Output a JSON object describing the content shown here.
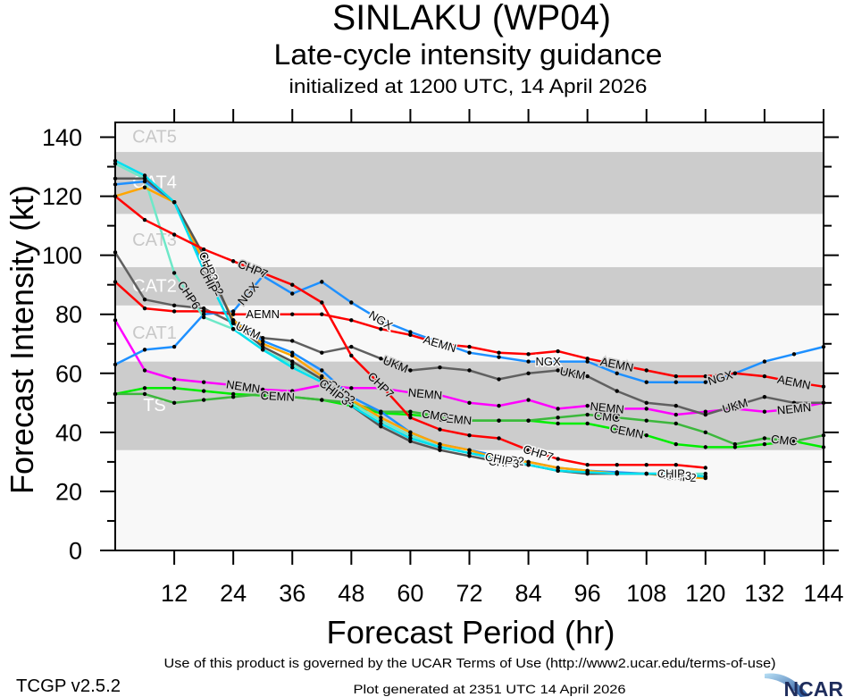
{
  "footer": {
    "terms": "Use of this product is governed by the UCAR Terms of Use (http://www2.ucar.edu/terms-of-use)",
    "version": "TCGP v2.5.2",
    "generated": "Plot generated at 2351 UTC   14 April 2026",
    "logo_text": "NCAR",
    "logo_colors": {
      "swoosh_light": "#b8e0f5",
      "swoosh_dark": "#1f4f9a",
      "text": "#1f2d5c"
    }
  },
  "chart_data": {
    "type": "line",
    "title": "SINLAKU (WP04)",
    "subtitle": "Late-cycle intensity guidance",
    "init_line": "initialized at 1200 UTC, 14 April 2026",
    "xlabel": "Forecast Period (hr)",
    "ylabel": "Forecast Intensity (kt)",
    "xlim": [
      0,
      144
    ],
    "ylim": [
      0,
      145
    ],
    "grid": false,
    "legend": "none (inline series labels)",
    "xticks": [
      12,
      24,
      36,
      48,
      60,
      72,
      84,
      96,
      108,
      120,
      132,
      144
    ],
    "yticks": [
      0,
      20,
      40,
      60,
      80,
      100,
      120,
      140
    ],
    "plot_background": "#f8f8f8",
    "bands": [
      {
        "label": "TS",
        "range": [
          34,
          64
        ],
        "fill": "#cccccc",
        "label_color": "#ffffff"
      },
      {
        "label": "CAT1",
        "range": [
          64,
          83
        ],
        "fill": "#f8f8f8",
        "label_color": "#c8c8c8"
      },
      {
        "label": "CAT2",
        "range": [
          83,
          96
        ],
        "fill": "#cccccc",
        "label_color": "#ffffff"
      },
      {
        "label": "CAT3",
        "range": [
          96,
          114
        ],
        "fill": "#f8f8f8",
        "label_color": "#c8c8c8"
      },
      {
        "label": "CAT4",
        "range": [
          114,
          135
        ],
        "fill": "#cccccc",
        "label_color": "#ffffff"
      },
      {
        "label": "CAT5",
        "range": [
          135,
          145
        ],
        "fill": "#f8f8f8",
        "label_color": "#c8c8c8"
      }
    ],
    "x": [
      0,
      6,
      12,
      18,
      24,
      30,
      36,
      42,
      48,
      54,
      60,
      66,
      72,
      78,
      84,
      90,
      96,
      102,
      108,
      114,
      120,
      126,
      132,
      138,
      144
    ],
    "series": [
      {
        "name": "CEMN",
        "color": "#00ee00",
        "label_hours": [
          33,
          69,
          104
        ],
        "values": [
          53,
          55,
          55,
          54,
          53,
          52.5,
          52,
          51,
          49,
          46.5,
          46,
          45,
          44,
          44,
          44,
          43,
          43,
          41,
          39,
          36,
          35,
          35,
          36,
          37,
          35
        ]
      },
      {
        "name": "CMC",
        "color": "#3cb83c",
        "label_hours": [
          65,
          100,
          136
        ],
        "values": [
          53,
          53,
          50,
          51,
          52,
          53,
          52,
          51,
          50,
          47,
          47,
          45.5,
          44,
          44,
          44,
          45,
          46,
          45,
          44,
          43,
          40,
          36,
          38,
          37,
          39
        ]
      },
      {
        "name": "NEMN",
        "color": "#ff00ff",
        "label_hours": [
          26,
          63,
          100,
          138
        ],
        "values": [
          78,
          61,
          58,
          57,
          56,
          54.5,
          54,
          56,
          55,
          55,
          53.5,
          52.6,
          50,
          49,
          51,
          48,
          49,
          48,
          48,
          46,
          47,
          48,
          47,
          48,
          50
        ]
      },
      {
        "name": "UKM",
        "color": "#606060",
        "label_hours": [
          27,
          57,
          93,
          126
        ],
        "values": [
          101,
          85,
          83,
          82,
          77,
          72,
          71,
          67,
          69,
          65,
          61,
          62,
          61,
          58,
          60,
          61,
          59,
          54,
          50,
          49,
          46,
          49,
          52,
          50,
          50
        ]
      },
      {
        "name": "NGX",
        "color": "#1e90ff",
        "label_hours": [
          27,
          54,
          88,
          123
        ],
        "values": [
          63,
          68,
          69,
          80,
          81,
          93,
          87,
          91,
          84,
          78,
          74,
          70.5,
          67,
          65.5,
          64,
          64,
          64,
          60,
          57,
          57,
          57,
          60,
          64,
          66.5,
          69
        ]
      },
      {
        "name": "AEMN",
        "color": "#ff0000",
        "label_hours": [
          30,
          66,
          102,
          138
        ],
        "values": [
          91,
          82,
          81,
          81,
          80,
          80,
          80,
          80,
          78,
          75,
          73,
          70,
          69,
          67,
          66.5,
          67.5,
          65,
          63,
          61,
          59,
          59,
          60,
          59,
          57,
          55.5
        ]
      },
      {
        "name": "CHP6",
        "color": "#6ee8c8",
        "label_hours": [
          15
        ],
        "values": [
          131,
          126,
          94,
          79,
          75,
          68,
          63,
          58,
          50,
          44,
          39,
          35,
          33,
          31,
          29,
          27,
          26,
          26,
          26,
          26,
          26
        ]
      },
      {
        "name": "",
        "color": "#1e90ff",
        "label_hours": [],
        "values": [
          124,
          125,
          118,
          97,
          78,
          71,
          67,
          61,
          52,
          47,
          40,
          36,
          34,
          32,
          30,
          28,
          27,
          26.5,
          26,
          26,
          25
        ]
      },
      {
        "name": "CHP2",
        "color": "#ffa500",
        "label_hours": [
          20,
          46,
          80,
          115
        ],
        "values": [
          120,
          123,
          118,
          98,
          78,
          70,
          66,
          59,
          51,
          45,
          40,
          36,
          34,
          31,
          30,
          28,
          27,
          26,
          26,
          25,
          24.5
        ]
      },
      {
        "name": "CHP3",
        "color": "#555555",
        "label_hours": [
          19,
          45,
          79,
          114
        ],
        "values": [
          126,
          126,
          118,
          100,
          77,
          69,
          64,
          58,
          49,
          42,
          37,
          34,
          32,
          30,
          29,
          27,
          26,
          26,
          26,
          25.5,
          25
        ]
      },
      {
        "name": "CHIP",
        "color": "#00e0f0",
        "label_hours": [
          19,
          44,
          78,
          113
        ],
        "values": [
          132,
          127,
          118,
          95,
          75,
          68,
          62,
          57,
          49,
          43,
          38,
          35,
          33,
          31,
          29,
          27,
          26.5,
          26,
          26,
          26,
          25
        ]
      },
      {
        "name": "CHP7",
        "color": "#ff0000",
        "label_hours": [
          28,
          54,
          86
        ],
        "values": [
          120,
          112,
          107,
          102,
          98,
          94,
          90,
          84,
          66,
          56,
          45,
          41,
          39,
          38,
          34,
          31,
          29,
          29,
          29,
          29,
          28
        ]
      }
    ]
  }
}
